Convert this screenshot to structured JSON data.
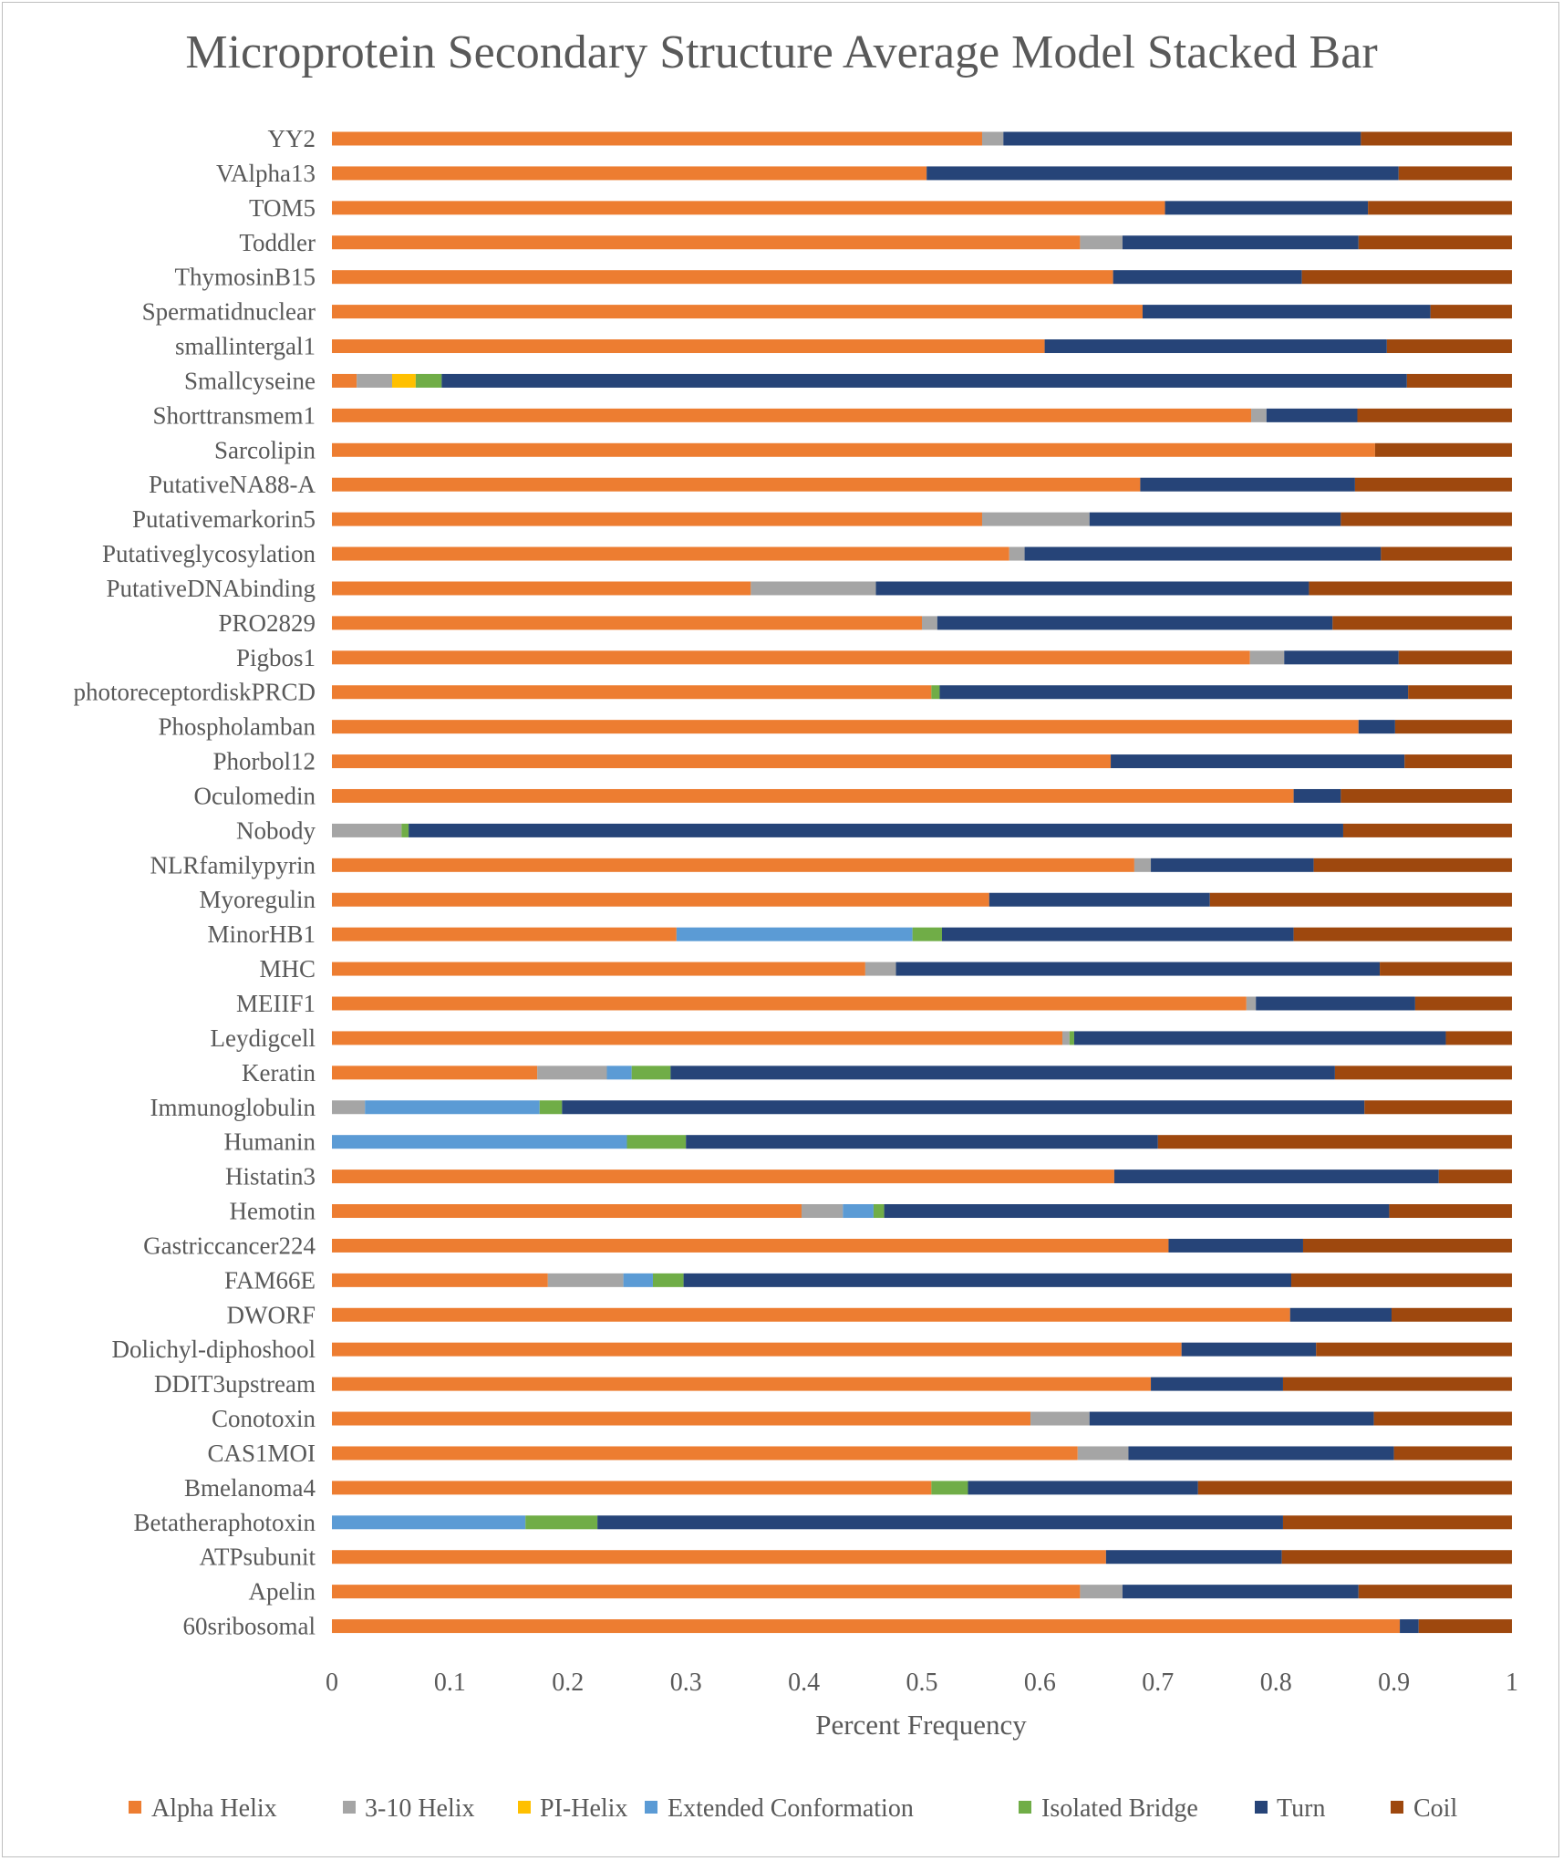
{
  "chart_data": {
    "type": "bar",
    "orientation": "horizontal",
    "stacked": true,
    "title": "Microprotein Secondary Structure Average Model Stacked Bar",
    "xlabel": "Percent Frequency",
    "ylabel": "",
    "xlim": [
      0,
      1
    ],
    "xticks": [
      "0",
      "0.1",
      "0.2",
      "0.3",
      "0.4",
      "0.5",
      "0.6",
      "0.7",
      "0.8",
      "0.9",
      "1"
    ],
    "grid": false,
    "legend_position": "bottom",
    "categories": [
      "YY2",
      "VAlpha13",
      "TOM5",
      "Toddler",
      "ThymosinB15",
      "Spermatidnuclear",
      "smallintergal1",
      "Smallcyseine",
      "Shorttransmem1",
      "Sarcolipin",
      "PutativeNA88-A",
      "Putativemarkorin5",
      "Putativeglycosylation",
      "PutativeDNAbinding",
      "PRO2829",
      "Pigbos1",
      "photoreceptordiskPRCD",
      "Phospholamban",
      "Phorbol12",
      "Oculomedin",
      "Nobody",
      "NLRfamilypyrin",
      "Myoregulin",
      "MinorHB1",
      "MHC",
      "MEIIF1",
      "Leydigcell",
      "Keratin",
      "Immunoglobulin",
      "Humanin",
      "Histatin3",
      "Hemotin",
      "Gastriccancer224",
      "FAM66E",
      "DWORF",
      "Dolichyl-diphoshool",
      "DDIT3upstream",
      "Conotoxin",
      "CAS1MOI",
      "Bmelanoma4",
      "Betatheraphotoxin",
      "ATPsubunit",
      "Apelin",
      "60sribosomal"
    ],
    "series": [
      {
        "name": "Alpha Helix",
        "color": "#ED7D31",
        "values": [
          0.551,
          0.504,
          0.706,
          0.634,
          0.662,
          0.687,
          0.604,
          0.021,
          0.779,
          0.884,
          0.685,
          0.551,
          0.574,
          0.355,
          0.5,
          0.778,
          0.508,
          0.87,
          0.66,
          0.815,
          0,
          0.68,
          0.557,
          0.292,
          0.452,
          0.775,
          0.619,
          0.174,
          0,
          0,
          0.663,
          0.398,
          0.709,
          0.183,
          0.812,
          0.72,
          0.694,
          0.592,
          0.632,
          0.508,
          0,
          0.656,
          0.634,
          0.905
        ]
      },
      {
        "name": "3-10 Helix",
        "color": "#A5A5A5",
        "values": [
          0.018,
          0,
          0,
          0.036,
          0,
          0,
          0,
          0.03,
          0.013,
          0,
          0,
          0.091,
          0.013,
          0.106,
          0.013,
          0.029,
          0,
          0,
          0,
          0,
          0.059,
          0.014,
          0,
          0,
          0.026,
          0.008,
          0.006,
          0.059,
          0.028,
          0,
          0,
          0.035,
          0,
          0.064,
          0,
          0,
          0,
          0.05,
          0.043,
          0,
          0,
          0,
          0.036,
          0
        ]
      },
      {
        "name": "PI-Helix",
        "color": "#FFC000",
        "values": [
          0,
          0,
          0,
          0,
          0,
          0,
          0,
          0.02,
          0,
          0,
          0,
          0,
          0,
          0,
          0,
          0,
          0,
          0,
          0,
          0,
          0,
          0,
          0,
          0,
          0,
          0,
          0,
          0,
          0,
          0,
          0,
          0,
          0,
          0,
          0,
          0,
          0,
          0,
          0,
          0,
          0,
          0,
          0,
          0
        ]
      },
      {
        "name": "Extended Conformation",
        "color": "#5B9BD5",
        "values": [
          0,
          0,
          0,
          0,
          0,
          0,
          0,
          0,
          0,
          0,
          0,
          0,
          0,
          0,
          0,
          0,
          0,
          0,
          0,
          0,
          0,
          0,
          0,
          0.2,
          0,
          0,
          0,
          0.021,
          0.148,
          0.25,
          0,
          0.026,
          0,
          0.025,
          0,
          0,
          0,
          0,
          0,
          0,
          0.164,
          0,
          0,
          0
        ]
      },
      {
        "name": "Isolated Bridge",
        "color": "#70AD47",
        "values": [
          0,
          0,
          0,
          0,
          0,
          0,
          0,
          0.022,
          0,
          0,
          0,
          0,
          0,
          0,
          0,
          0,
          0.007,
          0,
          0,
          0,
          0.006,
          0,
          0,
          0.025,
          0,
          0,
          0.004,
          0.033,
          0.019,
          0.05,
          0,
          0.009,
          0,
          0.026,
          0,
          0,
          0,
          0,
          0,
          0.031,
          0.061,
          0,
          0,
          0
        ]
      },
      {
        "name": "Turn",
        "color": "#264478",
        "values": [
          0.303,
          0.4,
          0.172,
          0.2,
          0.16,
          0.244,
          0.29,
          0.818,
          0.077,
          0,
          0.182,
          0.213,
          0.302,
          0.367,
          0.335,
          0.097,
          0.397,
          0.031,
          0.249,
          0.04,
          0.792,
          0.138,
          0.187,
          0.298,
          0.41,
          0.135,
          0.315,
          0.563,
          0.68,
          0.4,
          0.275,
          0.428,
          0.114,
          0.515,
          0.086,
          0.114,
          0.112,
          0.241,
          0.225,
          0.195,
          0.581,
          0.149,
          0.2,
          0.016
        ]
      },
      {
        "name": "Coil",
        "color": "#9E480E",
        "values": [
          0.128,
          0.096,
          0.122,
          0.13,
          0.178,
          0.069,
          0.106,
          0.089,
          0.131,
          0.116,
          0.133,
          0.145,
          0.111,
          0.172,
          0.152,
          0.096,
          0.088,
          0.099,
          0.091,
          0.145,
          0.143,
          0.168,
          0.256,
          0.185,
          0.112,
          0.082,
          0.056,
          0.15,
          0.125,
          0.3,
          0.062,
          0.104,
          0.177,
          0.187,
          0.102,
          0.166,
          0.194,
          0.117,
          0.1,
          0.266,
          0.194,
          0.195,
          0.13,
          0.079
        ]
      }
    ]
  }
}
